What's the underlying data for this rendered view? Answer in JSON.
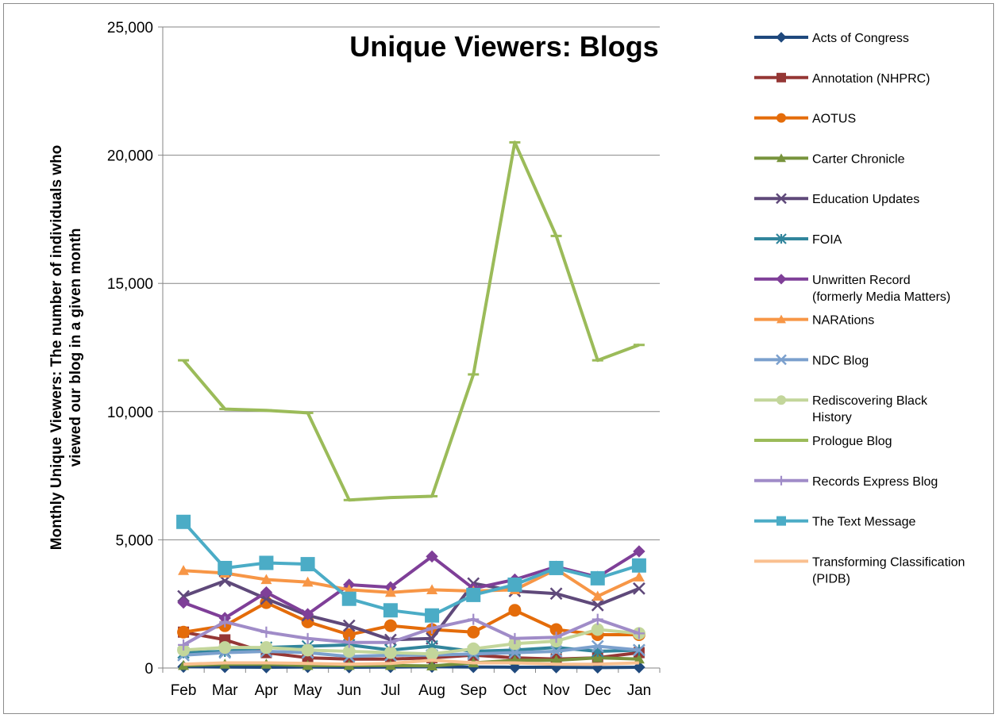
{
  "chart_data": {
    "type": "line",
    "title": "Unique Viewers: Blogs",
    "ylabel": "Monthly Unique Viewers: The number of individuals who viewed our blog in a given month",
    "xlabel": "",
    "categories": [
      "Feb",
      "Mar",
      "Apr",
      "May",
      "Jun",
      "Jul",
      "Aug",
      "Sep",
      "Oct",
      "Nov",
      "Dec",
      "Jan"
    ],
    "ylim": [
      0,
      25000
    ],
    "yticks": [
      0,
      5000,
      10000,
      15000,
      20000,
      25000
    ],
    "ytick_labels": [
      "0",
      "5,000",
      "10,000",
      "15,000",
      "20,000",
      "25,000"
    ],
    "grid": true,
    "legend_position": "right",
    "series": [
      {
        "name": "Acts of Congress",
        "color": "#1f497d",
        "marker": "diamond",
        "values": [
          50,
          40,
          30,
          40,
          30,
          40,
          50,
          40,
          30,
          30,
          20,
          30
        ]
      },
      {
        "name": "Annotation (NHPRC)",
        "color": "#953735",
        "marker": "square",
        "values": [
          1400,
          1100,
          600,
          400,
          350,
          350,
          400,
          500,
          400,
          350,
          400,
          600
        ]
      },
      {
        "name": "AOTUS",
        "color": "#e46c0a",
        "marker": "circle",
        "values": [
          1400,
          1650,
          2550,
          1800,
          1300,
          1650,
          1500,
          1400,
          2250,
          1500,
          1300,
          1300
        ]
      },
      {
        "name": "Carter Chronicle",
        "color": "#77933c",
        "marker": "triangle",
        "values": [
          100,
          150,
          150,
          100,
          100,
          100,
          80,
          200,
          300,
          300,
          400,
          350
        ]
      },
      {
        "name": "Education Updates",
        "color": "#5f497a",
        "marker": "x",
        "values": [
          2800,
          3400,
          2700,
          2050,
          1650,
          1100,
          1150,
          3300,
          3000,
          2900,
          2450,
          3100
        ]
      },
      {
        "name": "FOIA",
        "color": "#31859c",
        "marker": "star",
        "values": [
          600,
          650,
          800,
          850,
          900,
          700,
          850,
          650,
          700,
          800,
          650,
          700
        ]
      },
      {
        "name": "Unwritten Record\n(formerly Media Matters)",
        "color": "#7f3f98",
        "marker": "diamond",
        "values": [
          2550,
          1950,
          2950,
          2100,
          3250,
          3150,
          4350,
          3100,
          3450,
          3950,
          3550,
          4550
        ]
      },
      {
        "name": "NARAtions",
        "color": "#f79646",
        "marker": "triangle",
        "values": [
          3800,
          3700,
          3450,
          3350,
          3050,
          2950,
          3050,
          3000,
          3050,
          3850,
          2800,
          3550
        ]
      },
      {
        "name": "NDC Blog",
        "color": "#7ba0cd",
        "marker": "x",
        "values": [
          500,
          600,
          650,
          600,
          450,
          500,
          500,
          550,
          600,
          650,
          850,
          700
        ]
      },
      {
        "name": "Rediscovering Black\nHistory",
        "color": "#c3d69b",
        "marker": "circle",
        "values": [
          700,
          800,
          800,
          700,
          650,
          600,
          550,
          750,
          950,
          1050,
          1500,
          1350
        ]
      },
      {
        "name": "Prologue Blog",
        "color": "#9bbb59",
        "marker": "dash",
        "values": [
          12000,
          10100,
          10050,
          9950,
          6550,
          6650,
          6700,
          11450,
          20500,
          16850,
          12000,
          12600
        ]
      },
      {
        "name": "Records Express Blog",
        "color": "#a08cc8",
        "marker": "plus",
        "values": [
          900,
          1800,
          1400,
          1150,
          1000,
          1000,
          1550,
          1900,
          1150,
          1200,
          1900,
          1350
        ]
      },
      {
        "name": "The Text Message",
        "color": "#4bacc6",
        "marker": "square",
        "values": [
          5700,
          3900,
          4100,
          4050,
          2700,
          2250,
          2050,
          2850,
          3250,
          3900,
          3500,
          4000
        ]
      },
      {
        "name": "Transforming Classification\n(PIDB)",
        "color": "#fac090",
        "marker": "none",
        "values": [
          150,
          200,
          200,
          180,
          150,
          180,
          300,
          200,
          200,
          150,
          150,
          200
        ]
      }
    ]
  }
}
